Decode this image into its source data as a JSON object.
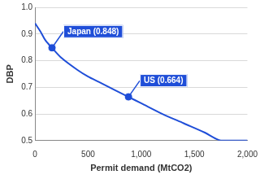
{
  "chart_data": {
    "type": "line",
    "x_label": "Permit demand (MtCO2)",
    "y_label": "DBP",
    "x": [
      0,
      50,
      100,
      160,
      250,
      400,
      500,
      600,
      750,
      880,
      1000,
      1200,
      1400,
      1600,
      1750,
      2000
    ],
    "values": [
      0.94,
      0.91,
      0.875,
      0.848,
      0.81,
      0.765,
      0.74,
      0.72,
      0.69,
      0.664,
      0.64,
      0.6,
      0.565,
      0.53,
      0.5,
      0.5
    ],
    "color": "#1f4ed8",
    "xlim": [
      0,
      2000
    ],
    "xticks": [
      0,
      500,
      {
        "value": 1000,
        "label": "1,000"
      },
      {
        "value": 1500,
        "label": "1,500"
      },
      {
        "value": 2000,
        "label": "2,000"
      }
    ],
    "ylim": [
      0.5,
      1
    ],
    "yticks": [
      0.5,
      0.6,
      0.7,
      0.8,
      0.9,
      {
        "value": 1,
        "label": "1.0"
      }
    ],
    "grid": true,
    "annotations": [
      {
        "x": 160,
        "y": 0.848,
        "label": "Japan (0.848)"
      },
      {
        "x": 880,
        "y": 0.664,
        "label": "US (0.664)"
      }
    ]
  }
}
